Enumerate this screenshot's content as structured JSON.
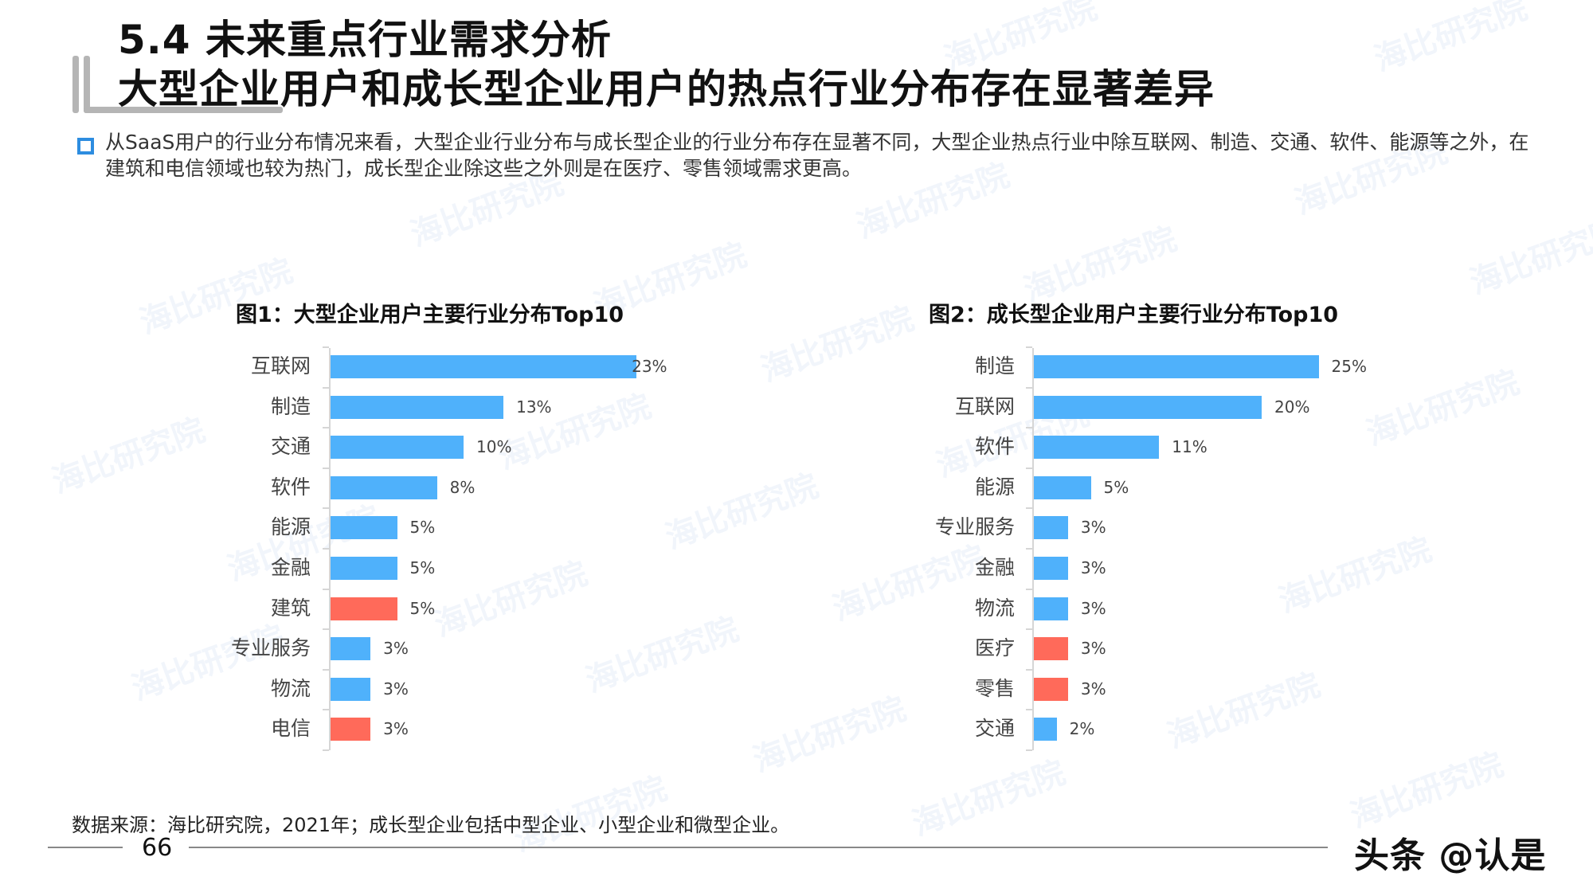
{
  "header": {
    "section_title": "5.4 未来重点行业需求分析",
    "headline": "大型企业用户和成长型企业用户的热点行业分布存在显著差异"
  },
  "summary": {
    "bullet_icon": "hollow-square-bullet",
    "text": "从SaaS用户的行业分布情况来看，大型企业行业分布与成长型企业的行业分布存在显著不同，大型企业热点行业中除互联网、制造、交通、软件、能源等之外，在建筑和电信领域也较为热门，成长型企业除这些之外则是在医疗、零售领域需求更高。"
  },
  "colors": {
    "bar_default": "#4fb1fb",
    "bar_highlight": "#ff6a5a",
    "bullet": "#2d8de0",
    "accent_bar": "#b5b5b5"
  },
  "chart_data": [
    {
      "type": "bar",
      "orientation": "horizontal",
      "title": "图1：大型企业用户主要行业分布Top10",
      "categories": [
        "互联网",
        "制造",
        "交通",
        "软件",
        "能源",
        "金融",
        "建筑",
        "专业服务",
        "物流",
        "电信"
      ],
      "values": [
        23,
        13,
        10,
        8,
        5,
        5,
        5,
        3,
        3,
        3
      ],
      "labels": [
        "23%",
        "13%",
        "10%",
        "8%",
        "5%",
        "5%",
        "5%",
        "3%",
        "3%",
        "3%"
      ],
      "highlighted": [
        "建筑",
        "电信"
      ],
      "unit": "%",
      "xlabel": "",
      "ylabel": "",
      "grid": false,
      "legend": "none"
    },
    {
      "type": "bar",
      "orientation": "horizontal",
      "title": "图2：成长型企业用户主要行业分布Top10",
      "categories": [
        "制造",
        "互联网",
        "软件",
        "能源",
        "专业服务",
        "金融",
        "物流",
        "医疗",
        "零售",
        "交通"
      ],
      "values": [
        25,
        20,
        11,
        5,
        3,
        3,
        3,
        3,
        3,
        2
      ],
      "labels": [
        "25%",
        "20%",
        "11%",
        "5%",
        "3%",
        "3%",
        "3%",
        "3%",
        "3%",
        "2%"
      ],
      "highlighted": [
        "医疗",
        "零售"
      ],
      "unit": "%",
      "xlabel": "",
      "ylabel": "",
      "grid": false,
      "legend": "none"
    }
  ],
  "footer": {
    "source": "数据来源：海比研究院，2021年；成长型企业包括中型企业、小型企业和微型企业。",
    "page_number": "66",
    "brand": "头条 @认是"
  },
  "watermark": {
    "text": "海比研究院"
  }
}
